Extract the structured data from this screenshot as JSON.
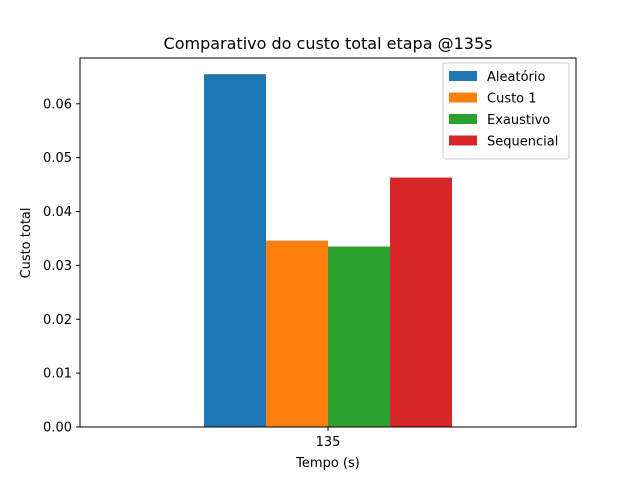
{
  "chart_data": {
    "type": "bar",
    "title": "Comparativo do custo total etapa @135s",
    "xlabel": "Tempo (s)",
    "ylabel": "Custo total",
    "categories": [
      "135"
    ],
    "ylim": [
      0,
      0.0685
    ],
    "yticks": [
      0.0,
      0.01,
      0.02,
      0.03,
      0.04,
      0.05,
      0.06
    ],
    "ytick_labels": [
      "0.00",
      "0.01",
      "0.02",
      "0.03",
      "0.04",
      "0.05",
      "0.06"
    ],
    "grid": false,
    "legend": "top-right",
    "series": [
      {
        "name": "Aleatório",
        "color": "#1f77b4",
        "values": [
          0.0655
        ]
      },
      {
        "name": "Custo 1",
        "color": "#ff7f0e",
        "values": [
          0.0346
        ]
      },
      {
        "name": "Exaustivo",
        "color": "#2ca02c",
        "values": [
          0.0335
        ]
      },
      {
        "name": "Sequencial",
        "color": "#d62728",
        "values": [
          0.0463
        ]
      }
    ]
  }
}
